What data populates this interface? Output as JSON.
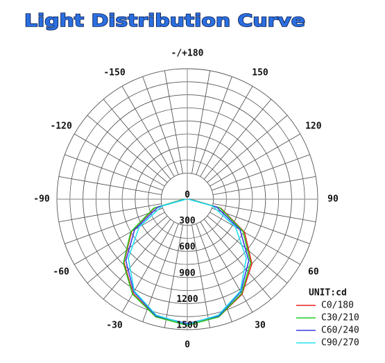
{
  "chart_data": {
    "type": "polar",
    "title": "Light Distribution Curve",
    "theta": [
      -90,
      -75,
      -60,
      -45,
      -30,
      -15,
      0,
      15,
      30,
      45,
      60,
      75,
      90
    ],
    "series": [
      {
        "name": "C0/180",
        "color": "#e8201c",
        "values": [
          20,
          390,
          740,
          1030,
          1250,
          1400,
          1440,
          1400,
          1260,
          1050,
          760,
          400,
          30
        ]
      },
      {
        "name": "C30/210",
        "color": "#22cc22",
        "values": [
          40,
          400,
          750,
          1040,
          1260,
          1400,
          1450,
          1400,
          1250,
          1030,
          740,
          390,
          30
        ]
      },
      {
        "name": "C60/240",
        "color": "#3a3ae0",
        "values": [
          20,
          350,
          700,
          1000,
          1230,
          1390,
          1430,
          1390,
          1230,
          1000,
          700,
          350,
          20
        ]
      },
      {
        "name": "C90/270",
        "color": "#22e0f0",
        "values": [
          10,
          300,
          640,
          960,
          1220,
          1380,
          1440,
          1380,
          1220,
          960,
          640,
          300,
          10
        ]
      }
    ],
    "rlim": [
      0,
      1500
    ],
    "rticks": [
      0,
      300,
      600,
      900,
      1200,
      1500
    ],
    "minor_rticks": [
      150,
      450,
      750,
      1050,
      1350
    ],
    "thetaticks": [
      {
        "value": 180,
        "label": "-/+180"
      },
      150,
      120,
      90,
      60,
      30,
      0,
      -30,
      -60,
      -90,
      -120,
      -150
    ],
    "theta_grid_step": 10,
    "legend_title": "UNIT:cd",
    "legend": "lower right",
    "grid": true
  }
}
